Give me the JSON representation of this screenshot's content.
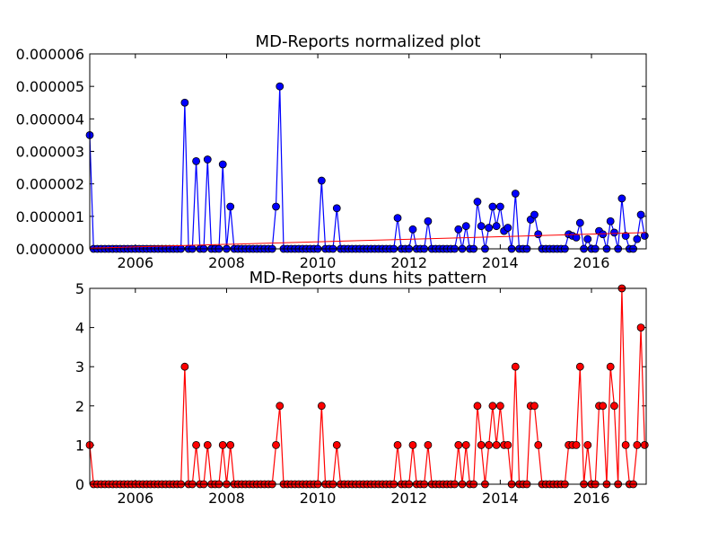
{
  "chart_data": [
    {
      "type": "line",
      "title": "MD-Reports normalized plot",
      "xlabel": "",
      "ylabel": "",
      "xlim": [
        2005.0,
        2017.2
      ],
      "ylim": [
        0,
        6e-06
      ],
      "x_ticks": [
        "2006",
        "2008",
        "2010",
        "2012",
        "2014",
        "2016"
      ],
      "y_ticks": [
        "0.000000",
        "0.000001",
        "0.000002",
        "0.000003",
        "0.000004",
        "0.000005",
        "0.000006"
      ],
      "grid": false,
      "series": [
        {
          "color": "#0000ff",
          "marker": "circle",
          "points": [
            [
              2005.0,
              3.5e-06
            ],
            [
              2005.08,
              0
            ],
            [
              2007.08,
              4.5e-06
            ],
            [
              2007.33,
              2.7e-06
            ],
            [
              2007.58,
              2.75e-06
            ],
            [
              2007.92,
              2.6e-06
            ],
            [
              2008.08,
              1.3e-06
            ],
            [
              2009.08,
              1.3e-06
            ],
            [
              2009.17,
              5e-06
            ],
            [
              2010.08,
              2.1e-06
            ],
            [
              2010.42,
              1.25e-06
            ],
            [
              2011.75,
              9.5e-07
            ],
            [
              2012.08,
              6e-07
            ],
            [
              2012.42,
              8.5e-07
            ],
            [
              2013.08,
              6e-07
            ],
            [
              2013.25,
              7e-07
            ],
            [
              2013.5,
              1.45e-06
            ],
            [
              2013.58,
              7e-07
            ],
            [
              2013.75,
              6.5e-07
            ],
            [
              2013.83,
              1.3e-06
            ],
            [
              2013.92,
              7e-07
            ],
            [
              2014.0,
              1.3e-06
            ],
            [
              2014.08,
              5.5e-07
            ],
            [
              2014.17,
              6.5e-07
            ],
            [
              2014.33,
              1.7e-06
            ],
            [
              2014.67,
              9e-07
            ],
            [
              2014.75,
              1.05e-06
            ],
            [
              2014.83,
              4.5e-07
            ],
            [
              2015.5,
              4.5e-07
            ],
            [
              2015.58,
              4e-07
            ],
            [
              2015.67,
              3.5e-07
            ],
            [
              2015.75,
              8e-07
            ],
            [
              2015.92,
              3e-07
            ],
            [
              2016.17,
              5.5e-07
            ],
            [
              2016.25,
              4.5e-07
            ],
            [
              2016.42,
              8.5e-07
            ],
            [
              2016.5,
              5e-07
            ],
            [
              2016.67,
              1.55e-06
            ],
            [
              2016.75,
              4e-07
            ],
            [
              2017.0,
              3e-07
            ],
            [
              2017.08,
              1.05e-06
            ],
            [
              2017.17,
              4e-07
            ]
          ]
        },
        {
          "name": "",
          "type": "trend",
          "color": "#ff0000",
          "points": [
            [
              2005.0,
              2e-08
            ],
            [
              2017.2,
              5e-07
            ]
          ]
        }
      ]
    },
    {
      "type": "line",
      "title": "MD-Reports duns hits pattern",
      "xlabel": "",
      "ylabel": "",
      "xlim": [
        2005.0,
        2017.2
      ],
      "ylim": [
        0,
        5
      ],
      "x_ticks": [
        "2006",
        "2008",
        "2010",
        "2012",
        "2014",
        "2016"
      ],
      "y_ticks": [
        "0",
        "1",
        "2",
        "3",
        "4",
        "5"
      ],
      "grid": false,
      "series": [
        {
          "color": "#ff0000",
          "marker": "circle",
          "points": [
            [
              2005.0,
              1
            ],
            [
              2005.08,
              0
            ],
            [
              2007.08,
              3
            ],
            [
              2007.33,
              1
            ],
            [
              2007.58,
              1
            ],
            [
              2007.92,
              1
            ],
            [
              2008.08,
              1
            ],
            [
              2009.08,
              1
            ],
            [
              2009.17,
              2
            ],
            [
              2010.08,
              2
            ],
            [
              2010.42,
              1
            ],
            [
              2011.75,
              1
            ],
            [
              2012.08,
              1
            ],
            [
              2012.42,
              1
            ],
            [
              2013.08,
              1
            ],
            [
              2013.25,
              1
            ],
            [
              2013.5,
              2
            ],
            [
              2013.58,
              1
            ],
            [
              2013.75,
              1
            ],
            [
              2013.83,
              2
            ],
            [
              2013.92,
              1
            ],
            [
              2014.0,
              2
            ],
            [
              2014.08,
              1
            ],
            [
              2014.17,
              1
            ],
            [
              2014.33,
              3
            ],
            [
              2014.67,
              2
            ],
            [
              2014.75,
              2
            ],
            [
              2014.83,
              1
            ],
            [
              2015.5,
              1
            ],
            [
              2015.58,
              1
            ],
            [
              2015.67,
              1
            ],
            [
              2015.75,
              3
            ],
            [
              2015.92,
              1
            ],
            [
              2016.17,
              2
            ],
            [
              2016.25,
              2
            ],
            [
              2016.42,
              3
            ],
            [
              2016.5,
              2
            ],
            [
              2016.67,
              5
            ],
            [
              2016.75,
              1
            ],
            [
              2017.0,
              1
            ],
            [
              2017.08,
              4
            ],
            [
              2017.17,
              1
            ]
          ]
        }
      ]
    }
  ]
}
